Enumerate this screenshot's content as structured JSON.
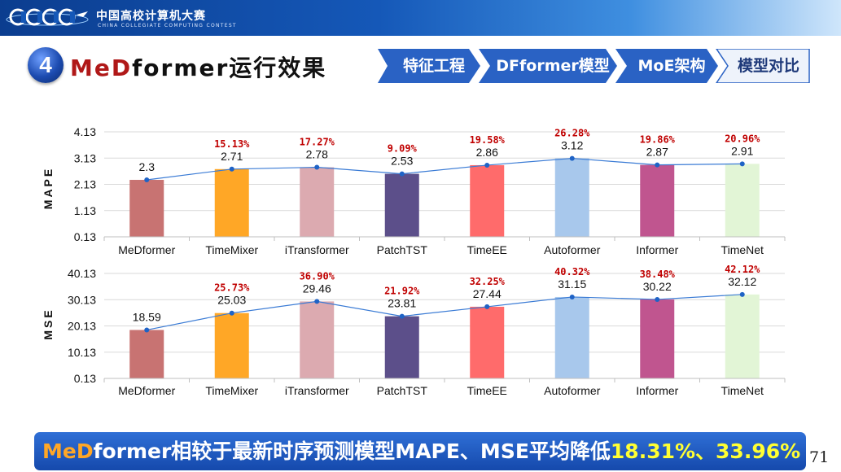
{
  "header": {
    "org_title": "中国高校计算机大赛",
    "org_subtitle": "CHINA COLLEGIATE COMPUTING CONTEST",
    "logo_name": "cccc-logo"
  },
  "section": {
    "number": "4",
    "title_highlight": "MeD",
    "title_rest": "former运行效果"
  },
  "breadcrumb": {
    "items": [
      "特征工程",
      "DFformer模型",
      "MoE架构",
      "模型对比"
    ],
    "active_index": 3
  },
  "colors": {
    "bars": [
      "#c87372",
      "#ffa726",
      "#dcaab0",
      "#5c4f8a",
      "#ff6b6b",
      "#a8c8ec",
      "#c0558f",
      "#e2f5d6"
    ],
    "line": "#3a7bd5",
    "pct_label": "#c00000",
    "topbar": "#1558b8",
    "banner": "#1f5cc0"
  },
  "chart_data": [
    {
      "type": "bar",
      "ylabel": "MAPE",
      "categories": [
        "MeDformer",
        "TimeMixer",
        "iTransformer",
        "PatchTST",
        "TimeEE",
        "Autoformer",
        "Informer",
        "TimeNet"
      ],
      "values": [
        2.3,
        2.71,
        2.78,
        2.53,
        2.86,
        3.12,
        2.87,
        2.91
      ],
      "value_labels": [
        "2.3",
        "2.71",
        "2.78",
        "2.53",
        "2.86",
        "3.12",
        "2.87",
        "2.91"
      ],
      "pct_labels": [
        "",
        "15.13%",
        "17.27%",
        "9.09%",
        "19.58%",
        "26.28%",
        "19.86%",
        "20.96%"
      ],
      "yticks": [
        "4.13",
        "3.13",
        "2.13",
        "1.13",
        "0.13"
      ],
      "ylim": [
        0.13,
        4.13
      ],
      "grid": true,
      "overlay": "line"
    },
    {
      "type": "bar",
      "ylabel": "MSE",
      "categories": [
        "MeDformer",
        "TimeMixer",
        "iTransformer",
        "PatchTST",
        "TimeEE",
        "Autoformer",
        "Informer",
        "TimeNet"
      ],
      "values": [
        18.59,
        25.03,
        29.46,
        23.81,
        27.44,
        31.15,
        30.22,
        32.12
      ],
      "value_labels": [
        "18.59",
        "25.03",
        "29.46",
        "23.81",
        "27.44",
        "31.15",
        "30.22",
        "32.12"
      ],
      "pct_labels": [
        "",
        "25.73%",
        "36.90%",
        "21.92%",
        "32.25%",
        "40.32%",
        "38.48%",
        "42.12%"
      ],
      "yticks": [
        "40.13",
        "30.13",
        "20.13",
        "10.13",
        "0.13"
      ],
      "ylim": [
        0.13,
        40.13
      ],
      "grid": true,
      "overlay": "line"
    }
  ],
  "banner": {
    "part1": "MeD",
    "part2": "former相较于最新时序预测模型MAPE、MSE平均降低",
    "part3": "18.31%、33.96%"
  },
  "page_number": "71"
}
